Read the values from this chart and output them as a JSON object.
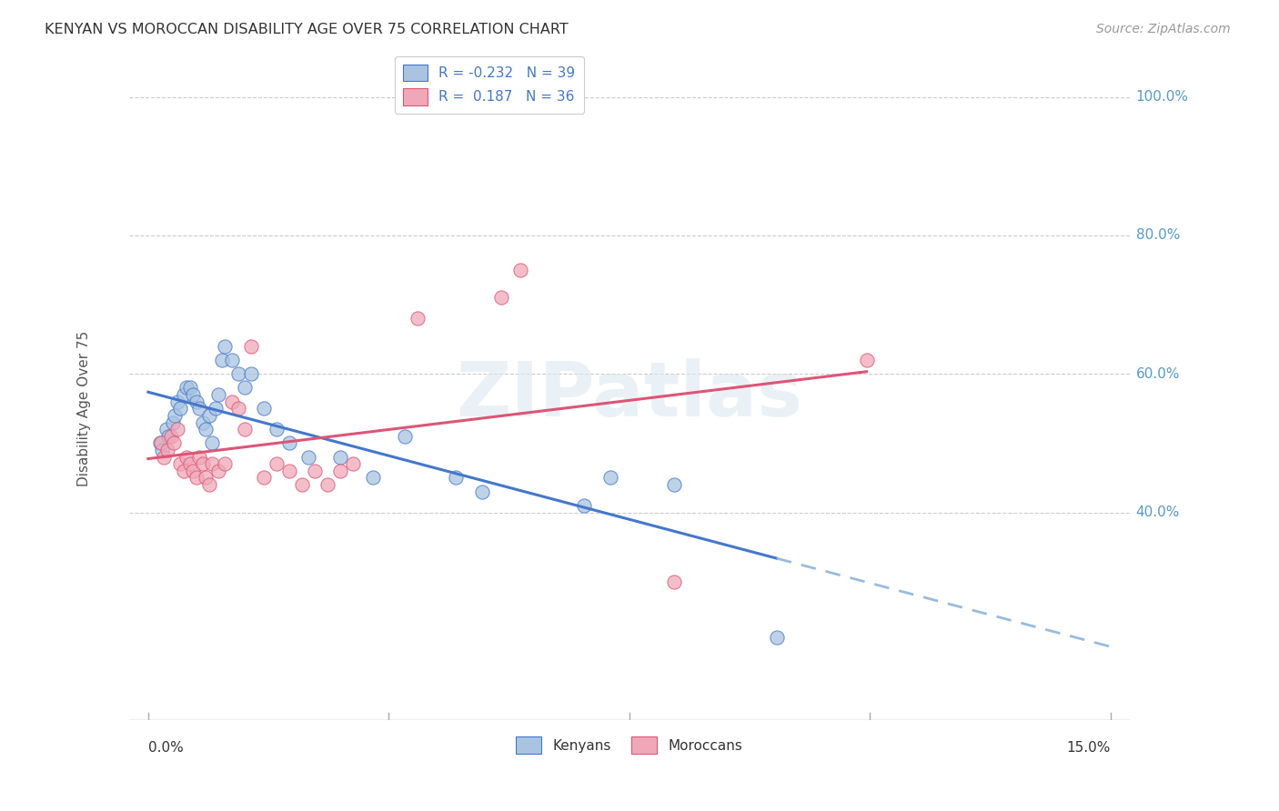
{
  "title": "KENYAN VS MOROCCAN DISABILITY AGE OVER 75 CORRELATION CHART",
  "source": "Source: ZipAtlas.com",
  "ylabel": "Disability Age Over 75",
  "legend_labels": [
    "Kenyans",
    "Moroccans"
  ],
  "kenyan_R": -0.232,
  "kenyan_N": 39,
  "moroccan_R": 0.187,
  "moroccan_N": 36,
  "kenyan_color": "#a8c4e0",
  "moroccan_color": "#f0a8b8",
  "kenyan_line_color": "#4477cc",
  "moroccan_line_color": "#dd5577",
  "trend_dash_color": "#99bbdd",
  "watermark": "ZIPatlas",
  "background_color": "#ffffff",
  "grid_color": "#cccccc",
  "right_label_color": "#5599cc",
  "kenyan_x": [
    0.18,
    0.22,
    0.28,
    0.32,
    0.38,
    0.42,
    0.45,
    0.5,
    0.55,
    0.6,
    0.65,
    0.7,
    0.75,
    0.8,
    0.85,
    0.9,
    0.95,
    1.0,
    1.05,
    1.1,
    1.15,
    1.2,
    1.3,
    1.4,
    1.5,
    1.6,
    1.8,
    2.0,
    2.2,
    2.5,
    3.0,
    3.5,
    4.0,
    4.8,
    5.2,
    6.8,
    7.2,
    8.2,
    9.8
  ],
  "kenyan_y": [
    50,
    49,
    52,
    51,
    53,
    54,
    56,
    55,
    57,
    58,
    58,
    57,
    56,
    55,
    53,
    52,
    54,
    50,
    55,
    57,
    62,
    64,
    62,
    60,
    58,
    60,
    55,
    52,
    50,
    48,
    48,
    45,
    51,
    45,
    43,
    41,
    45,
    44,
    22
  ],
  "moroccan_x": [
    0.2,
    0.25,
    0.3,
    0.35,
    0.4,
    0.45,
    0.5,
    0.55,
    0.6,
    0.65,
    0.7,
    0.75,
    0.8,
    0.85,
    0.9,
    0.95,
    1.0,
    1.1,
    1.2,
    1.3,
    1.4,
    1.5,
    1.6,
    1.8,
    2.0,
    2.2,
    2.4,
    2.6,
    2.8,
    3.0,
    3.2,
    4.2,
    5.5,
    5.8,
    8.2,
    11.2
  ],
  "moroccan_y": [
    50,
    48,
    49,
    51,
    50,
    52,
    47,
    46,
    48,
    47,
    46,
    45,
    48,
    47,
    45,
    44,
    47,
    46,
    47,
    56,
    55,
    52,
    64,
    45,
    47,
    46,
    44,
    46,
    44,
    46,
    47,
    68,
    71,
    75,
    30,
    62
  ],
  "xmin": 0.0,
  "xmax": 15.0,
  "ymin": 10,
  "ymax": 100,
  "ytick_positions": [
    100,
    80,
    60,
    40
  ],
  "ytick_labels": [
    "100.0%",
    "80.0%",
    "60.0%",
    "40.0%"
  ],
  "xtick_positions": [
    0,
    15
  ],
  "xtick_labels": [
    "0.0%",
    "15.0%"
  ]
}
